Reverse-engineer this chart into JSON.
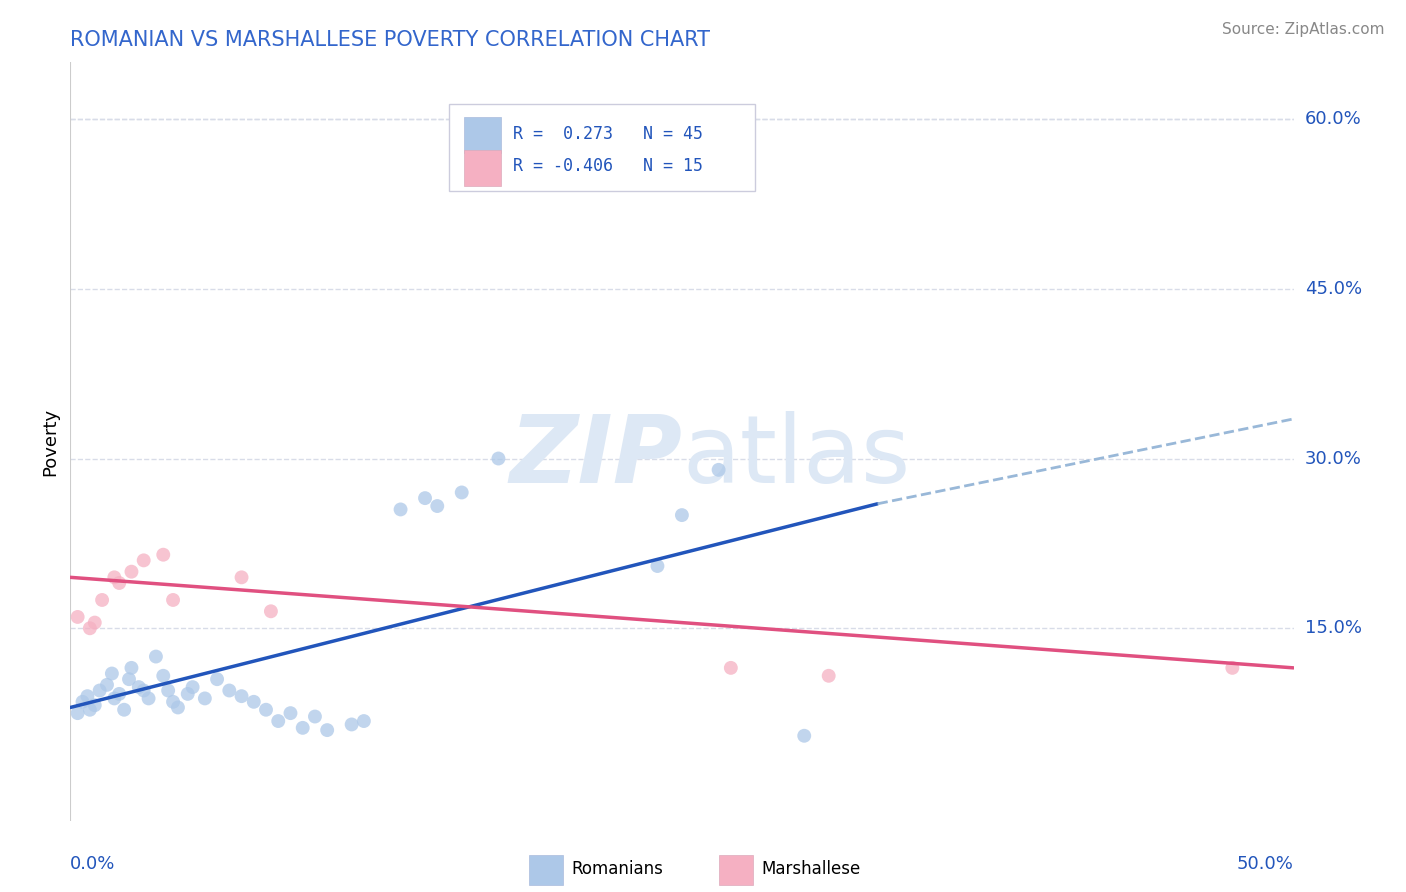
{
  "title": "ROMANIAN VS MARSHALLESE POVERTY CORRELATION CHART",
  "source": "Source: ZipAtlas.com",
  "ylabel": "Poverty",
  "xlim": [
    0.0,
    0.5
  ],
  "ylim": [
    -0.02,
    0.65
  ],
  "ytick_labels": [
    "15.0%",
    "30.0%",
    "45.0%",
    "60.0%"
  ],
  "ytick_values": [
    0.15,
    0.3,
    0.45,
    0.6
  ],
  "legend_r_romanian": "R =  0.273",
  "legend_n_romanian": "N = 45",
  "legend_r_marshallese": "R = -0.406",
  "legend_n_marshallese": "N = 15",
  "romanian_color": "#adc8e8",
  "marshallese_color": "#f5b0c2",
  "trendline_romanian_color": "#2255bb",
  "trendline_marshallese_color": "#e05080",
  "trendline_dashed_color": "#99b8d8",
  "background_color": "#ffffff",
  "grid_color": "#d8dce8",
  "title_color": "#3366cc",
  "watermark_color": "#dde8f5",
  "romanians_scatter": [
    [
      0.003,
      0.075
    ],
    [
      0.005,
      0.085
    ],
    [
      0.007,
      0.09
    ],
    [
      0.008,
      0.078
    ],
    [
      0.01,
      0.082
    ],
    [
      0.012,
      0.095
    ],
    [
      0.015,
      0.1
    ],
    [
      0.017,
      0.11
    ],
    [
      0.018,
      0.088
    ],
    [
      0.02,
      0.092
    ],
    [
      0.022,
      0.078
    ],
    [
      0.024,
      0.105
    ],
    [
      0.025,
      0.115
    ],
    [
      0.028,
      0.098
    ],
    [
      0.03,
      0.095
    ],
    [
      0.032,
      0.088
    ],
    [
      0.035,
      0.125
    ],
    [
      0.038,
      0.108
    ],
    [
      0.04,
      0.095
    ],
    [
      0.042,
      0.085
    ],
    [
      0.044,
      0.08
    ],
    [
      0.048,
      0.092
    ],
    [
      0.05,
      0.098
    ],
    [
      0.055,
      0.088
    ],
    [
      0.06,
      0.105
    ],
    [
      0.065,
      0.095
    ],
    [
      0.07,
      0.09
    ],
    [
      0.075,
      0.085
    ],
    [
      0.08,
      0.078
    ],
    [
      0.085,
      0.068
    ],
    [
      0.09,
      0.075
    ],
    [
      0.095,
      0.062
    ],
    [
      0.1,
      0.072
    ],
    [
      0.105,
      0.06
    ],
    [
      0.115,
      0.065
    ],
    [
      0.12,
      0.068
    ],
    [
      0.135,
      0.255
    ],
    [
      0.145,
      0.265
    ],
    [
      0.15,
      0.258
    ],
    [
      0.16,
      0.27
    ],
    [
      0.175,
      0.3
    ],
    [
      0.24,
      0.205
    ],
    [
      0.25,
      0.25
    ],
    [
      0.265,
      0.29
    ],
    [
      0.3,
      0.055
    ]
  ],
  "marshallese_scatter": [
    [
      0.003,
      0.16
    ],
    [
      0.008,
      0.15
    ],
    [
      0.01,
      0.155
    ],
    [
      0.013,
      0.175
    ],
    [
      0.018,
      0.195
    ],
    [
      0.02,
      0.19
    ],
    [
      0.025,
      0.2
    ],
    [
      0.03,
      0.21
    ],
    [
      0.038,
      0.215
    ],
    [
      0.042,
      0.175
    ],
    [
      0.07,
      0.195
    ],
    [
      0.082,
      0.165
    ],
    [
      0.27,
      0.115
    ],
    [
      0.31,
      0.108
    ],
    [
      0.475,
      0.115
    ]
  ],
  "scatter_size": 100
}
